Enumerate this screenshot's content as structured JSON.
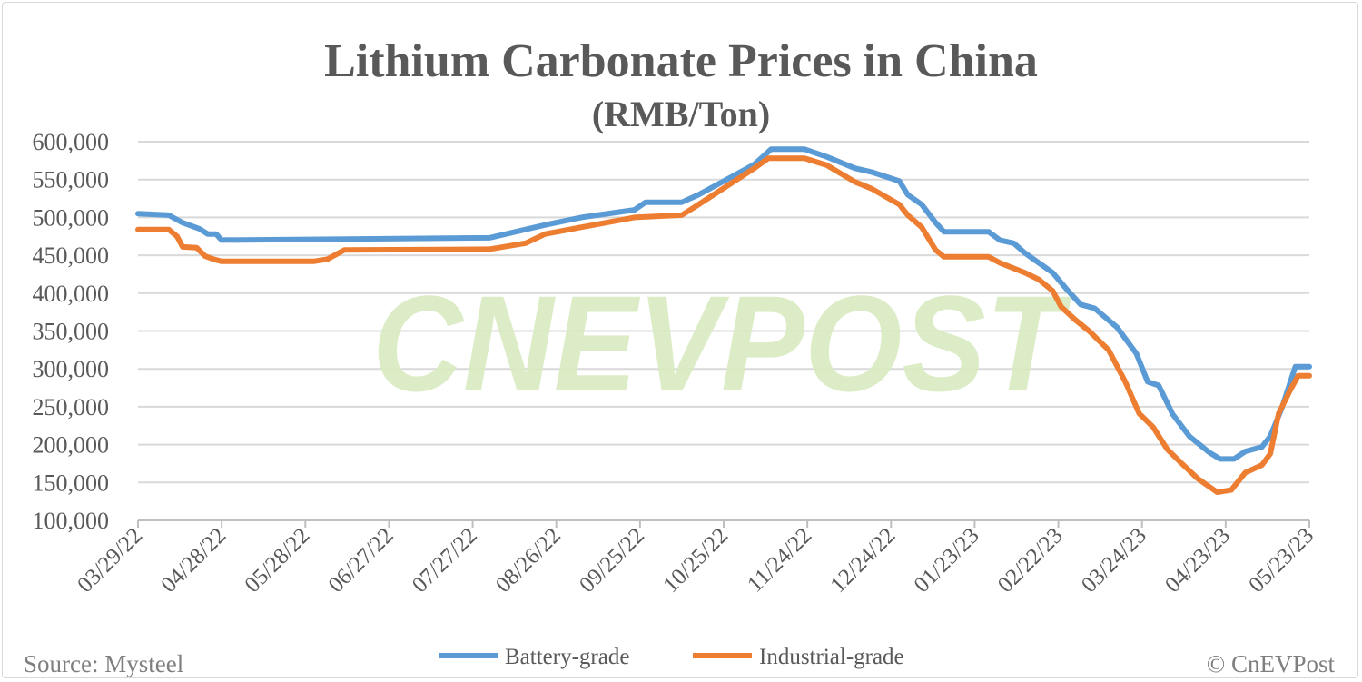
{
  "chart_data": {
    "type": "line",
    "title": "Lithium Carbonate Prices in China",
    "subtitle": "(RMB/Ton)",
    "xlabel": "",
    "ylabel": "",
    "x_start_date": "03/29/22",
    "x_range_days": [
      0,
      420
    ],
    "ylim": [
      100000,
      600000
    ],
    "yticks": [
      100000,
      150000,
      200000,
      250000,
      300000,
      350000,
      400000,
      450000,
      500000,
      550000,
      600000
    ],
    "ytick_labels": [
      "100,000",
      "150,000",
      "200,000",
      "250,000",
      "300,000",
      "350,000",
      "400,000",
      "450,000",
      "500,000",
      "550,000",
      "600,000"
    ],
    "xtick_days": [
      0,
      30,
      60,
      90,
      120,
      150,
      180,
      210,
      240,
      270,
      300,
      330,
      360,
      390,
      420
    ],
    "xtick_labels": [
      "03/29/22",
      "04/28/22",
      "05/28/22",
      "06/27/22",
      "07/27/22",
      "08/26/22",
      "09/25/22",
      "10/25/22",
      "11/24/22",
      "12/24/22",
      "01/23/23",
      "02/22/23",
      "03/24/23",
      "04/23/23",
      "05/23/23"
    ],
    "grid": "horizontal",
    "legend_position": "bottom",
    "series": [
      {
        "name": "Battery-grade",
        "color": "#5b9bd5",
        "points": [
          [
            0,
            505000
          ],
          [
            11,
            503000
          ],
          [
            16,
            493000
          ],
          [
            22,
            485000
          ],
          [
            25,
            478000
          ],
          [
            28,
            478000
          ],
          [
            30,
            470000
          ],
          [
            126,
            473000
          ],
          [
            146,
            490000
          ],
          [
            159,
            500000
          ],
          [
            178,
            510000
          ],
          [
            182,
            520000
          ],
          [
            195,
            520000
          ],
          [
            201,
            530000
          ],
          [
            211,
            550000
          ],
          [
            221,
            570000
          ],
          [
            227,
            590000
          ],
          [
            239,
            590000
          ],
          [
            247,
            580000
          ],
          [
            257,
            565000
          ],
          [
            263,
            560000
          ],
          [
            273,
            548000
          ],
          [
            276,
            530000
          ],
          [
            281,
            517000
          ],
          [
            286,
            493000
          ],
          [
            289,
            481000
          ],
          [
            305,
            481000
          ],
          [
            309,
            470000
          ],
          [
            314,
            466000
          ],
          [
            318,
            453000
          ],
          [
            328,
            427000
          ],
          [
            333,
            405000
          ],
          [
            338,
            385000
          ],
          [
            343,
            380000
          ],
          [
            351,
            355000
          ],
          [
            358,
            320000
          ],
          [
            362,
            283000
          ],
          [
            366,
            278000
          ],
          [
            371,
            240000
          ],
          [
            377,
            211000
          ],
          [
            384,
            190000
          ],
          [
            388,
            181000
          ],
          [
            393,
            181000
          ],
          [
            397,
            191000
          ],
          [
            403,
            197000
          ],
          [
            406,
            211000
          ],
          [
            410,
            247000
          ],
          [
            415,
            303000
          ],
          [
            420,
            303000
          ]
        ]
      },
      {
        "name": "Industrial-grade",
        "color": "#ed7d31",
        "points": [
          [
            0,
            484000
          ],
          [
            11,
            484000
          ],
          [
            14,
            475000
          ],
          [
            16,
            461000
          ],
          [
            21,
            460000
          ],
          [
            24,
            449000
          ],
          [
            27,
            445000
          ],
          [
            30,
            442000
          ],
          [
            63,
            442000
          ],
          [
            68,
            445000
          ],
          [
            74,
            457000
          ],
          [
            126,
            458000
          ],
          [
            139,
            466000
          ],
          [
            146,
            478000
          ],
          [
            159,
            487000
          ],
          [
            178,
            500000
          ],
          [
            195,
            503000
          ],
          [
            201,
            517000
          ],
          [
            211,
            541000
          ],
          [
            221,
            565000
          ],
          [
            226,
            578000
          ],
          [
            239,
            578000
          ],
          [
            247,
            569000
          ],
          [
            257,
            547000
          ],
          [
            263,
            538000
          ],
          [
            273,
            517000
          ],
          [
            276,
            503000
          ],
          [
            281,
            487000
          ],
          [
            286,
            457000
          ],
          [
            289,
            448000
          ],
          [
            305,
            448000
          ],
          [
            309,
            440000
          ],
          [
            318,
            427000
          ],
          [
            323,
            418000
          ],
          [
            328,
            403000
          ],
          [
            331,
            382000
          ],
          [
            336,
            365000
          ],
          [
            341,
            350000
          ],
          [
            348,
            325000
          ],
          [
            354,
            283000
          ],
          [
            359,
            241000
          ],
          [
            364,
            223000
          ],
          [
            369,
            194000
          ],
          [
            374,
            176000
          ],
          [
            380,
            155000
          ],
          [
            387,
            137000
          ],
          [
            392,
            140000
          ],
          [
            397,
            163000
          ],
          [
            403,
            173000
          ],
          [
            406,
            188000
          ],
          [
            409,
            241000
          ],
          [
            413,
            271000
          ],
          [
            416,
            291000
          ],
          [
            420,
            291000
          ]
        ]
      }
    ]
  },
  "footer": {
    "source": "Source: Mysteel",
    "copyright": "© CnEVPost"
  },
  "watermark": "CNEVPOST",
  "colors": {
    "grid": "#d9d9d9",
    "axis": "#bfbfbf",
    "text": "#595959",
    "watermark": "#d9ebc0"
  }
}
